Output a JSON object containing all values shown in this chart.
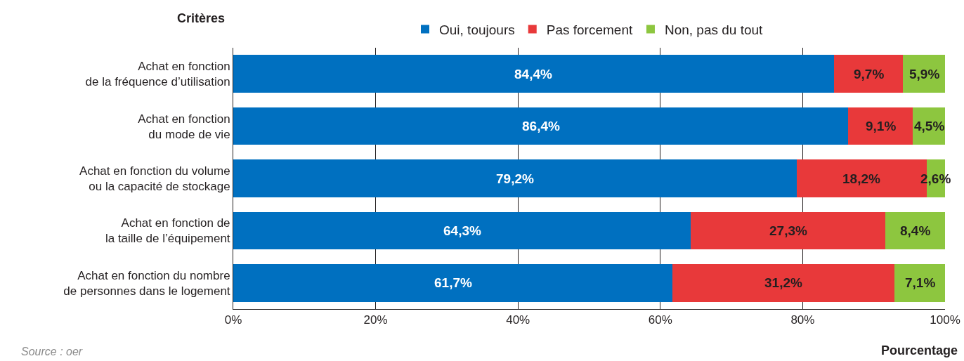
{
  "chart_data": {
    "type": "bar",
    "orientation": "horizontal",
    "stacked": true,
    "ylabel": "Critères",
    "xlabel": "Pourcentage",
    "categories": [
      "Achat en fonction\nde la fréquence d’utilisation",
      "Achat en fonction\ndu mode de vie",
      "Achat en fonction du volume\nou la capacité de stockage",
      "Achat en fonction de\nla taille de l’équipement",
      "Achat en fonction du nombre\nde personnes dans le logement"
    ],
    "series": [
      {
        "name": "Oui, toujours",
        "color": "#0070c0",
        "values": [
          84.4,
          86.4,
          79.2,
          64.3,
          61.7
        ],
        "value_labels": [
          "84,4%",
          "86,4%",
          "79,2%",
          "64,3%",
          "61,7%"
        ]
      },
      {
        "name": "Pas forcement",
        "color": "#e8393a",
        "values": [
          9.7,
          9.1,
          18.2,
          27.3,
          31.2
        ],
        "value_labels": [
          "9,7%",
          "9,1%",
          "18,2%",
          "27,3%",
          "31,2%"
        ]
      },
      {
        "name": "Non, pas du tout",
        "color": "#8dc63f",
        "values": [
          5.9,
          4.5,
          2.6,
          8.4,
          7.1
        ],
        "value_labels": [
          "5,9%",
          "4,5%",
          "2,6%",
          "8,4%",
          "7,1%"
        ]
      }
    ],
    "xlim": [
      0,
      100
    ],
    "xticks": [
      {
        "value": 0,
        "label": "0%"
      },
      {
        "value": 20,
        "label": "20%"
      },
      {
        "value": 40,
        "label": "40%"
      },
      {
        "value": 60,
        "label": "60%"
      },
      {
        "value": 80,
        "label": "80%"
      },
      {
        "value": 100,
        "label": "100%"
      }
    ],
    "grid": "x",
    "legend": "top",
    "annotations": [
      "Source : oer"
    ]
  }
}
